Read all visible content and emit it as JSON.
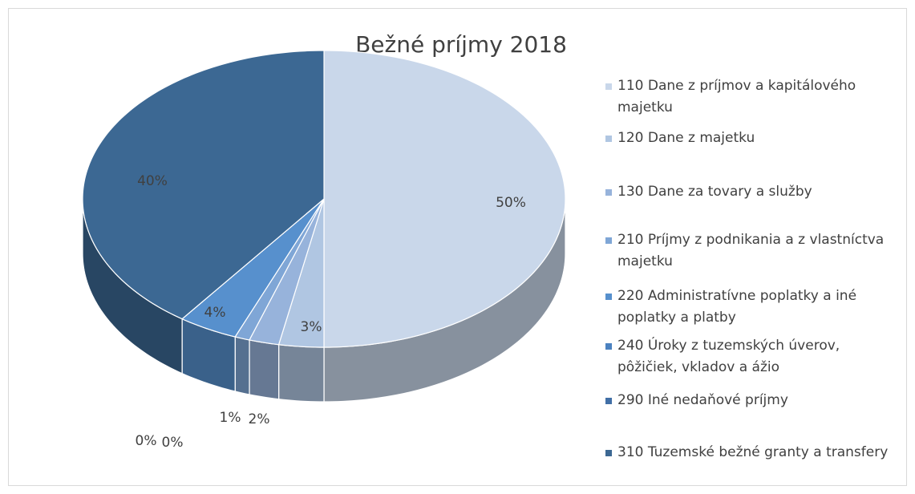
{
  "chart_data": {
    "type": "pie3d",
    "title": "Bežné príjmy 2018",
    "categories": [
      "110 Dane z príjmov a kapitálového majetku",
      "120 Dane z majetku",
      "130 Dane za tovary a služby",
      "210 Príjmy z podnikania a z vlastníctva majetku",
      "220 Administratívne poplatky a iné poplatky a platby",
      "240 Úroky z tuzemských úverov, pôžičiek, vkladov a ážio",
      "290 Iné nedaňové príjmy",
      "310 Tuzemské bežné granty a transfery"
    ],
    "values": [
      50,
      3,
      2,
      1,
      4,
      0,
      0,
      40
    ],
    "value_labels": [
      "50%",
      "3%",
      "2%",
      "1%",
      "4%",
      "0%",
      "0%",
      "40%"
    ],
    "colors": [
      "#c9d7ea",
      "#b0c6e2",
      "#97b3db",
      "#7fa6d6",
      "#5790cd",
      "#4b82c0",
      "#416fa6",
      "#3c6893"
    ]
  }
}
